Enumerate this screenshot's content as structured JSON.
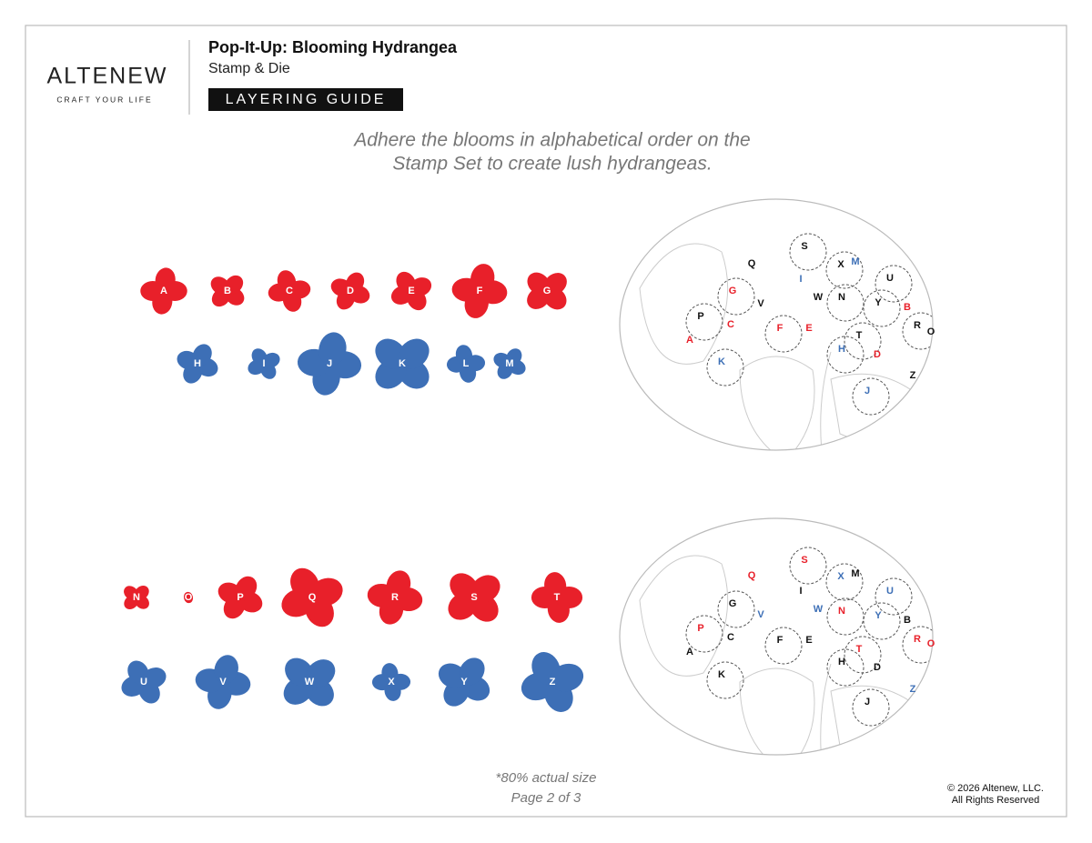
{
  "header": {
    "brand": "ALTENEW",
    "tagline": "CRAFT YOUR LIFE",
    "title": "Pop-It-Up: Blooming Hydrangea",
    "subtitle": "Stamp & Die",
    "badge": "LAYERING GUIDE"
  },
  "instructions": [
    "Adhere the blooms in alphabetical order on the",
    "Stamp Set to create lush hydrangeas."
  ],
  "bloom_rows": [
    {
      "color": "#e8202a",
      "letters": [
        "A",
        "B",
        "C",
        "D",
        "E",
        "F",
        "G"
      ]
    },
    {
      "color": "#3d6fb6",
      "letters": [
        "H",
        "I",
        "J",
        "K",
        "L",
        "M"
      ]
    },
    {
      "color": "#e8202a",
      "letters": [
        "N",
        "O",
        "P",
        "Q",
        "R",
        "S",
        "T"
      ]
    },
    {
      "color": "#3d6fb6",
      "letters": [
        "U",
        "V",
        "W",
        "X",
        "Y",
        "Z"
      ]
    }
  ],
  "diagrams": [
    {
      "labels": [
        {
          "letter": "S",
          "color": "#111111"
        },
        {
          "letter": "Q",
          "color": "#111111"
        },
        {
          "letter": "X",
          "color": "#111111"
        },
        {
          "letter": "M",
          "color": "#3d6fb6"
        },
        {
          "letter": "U",
          "color": "#111111"
        },
        {
          "letter": "I",
          "color": "#3d6fb6"
        },
        {
          "letter": "G",
          "color": "#e8202a"
        },
        {
          "letter": "W",
          "color": "#111111"
        },
        {
          "letter": "N",
          "color": "#111111"
        },
        {
          "letter": "V",
          "color": "#111111"
        },
        {
          "letter": "Y",
          "color": "#111111"
        },
        {
          "letter": "B",
          "color": "#e8202a"
        },
        {
          "letter": "P",
          "color": "#111111"
        },
        {
          "letter": "C",
          "color": "#e8202a"
        },
        {
          "letter": "F",
          "color": "#e8202a"
        },
        {
          "letter": "E",
          "color": "#e8202a"
        },
        {
          "letter": "R",
          "color": "#111111"
        },
        {
          "letter": "O",
          "color": "#111111"
        },
        {
          "letter": "T",
          "color": "#111111"
        },
        {
          "letter": "A",
          "color": "#e8202a"
        },
        {
          "letter": "H",
          "color": "#3d6fb6"
        },
        {
          "letter": "D",
          "color": "#e8202a"
        },
        {
          "letter": "K",
          "color": "#3d6fb6"
        },
        {
          "letter": "Z",
          "color": "#111111"
        },
        {
          "letter": "J",
          "color": "#3d6fb6"
        }
      ]
    },
    {
      "labels": [
        {
          "letter": "S",
          "color": "#e8202a"
        },
        {
          "letter": "Q",
          "color": "#e8202a"
        },
        {
          "letter": "X",
          "color": "#3d6fb6"
        },
        {
          "letter": "M",
          "color": "#111111"
        },
        {
          "letter": "U",
          "color": "#3d6fb6"
        },
        {
          "letter": "I",
          "color": "#111111"
        },
        {
          "letter": "G",
          "color": "#111111"
        },
        {
          "letter": "W",
          "color": "#3d6fb6"
        },
        {
          "letter": "N",
          "color": "#e8202a"
        },
        {
          "letter": "V",
          "color": "#3d6fb6"
        },
        {
          "letter": "Y",
          "color": "#3d6fb6"
        },
        {
          "letter": "B",
          "color": "#111111"
        },
        {
          "letter": "P",
          "color": "#e8202a"
        },
        {
          "letter": "C",
          "color": "#111111"
        },
        {
          "letter": "F",
          "color": "#111111"
        },
        {
          "letter": "E",
          "color": "#111111"
        },
        {
          "letter": "R",
          "color": "#e8202a"
        },
        {
          "letter": "O",
          "color": "#e8202a"
        },
        {
          "letter": "T",
          "color": "#e8202a"
        },
        {
          "letter": "A",
          "color": "#111111"
        },
        {
          "letter": "H",
          "color": "#111111"
        },
        {
          "letter": "D",
          "color": "#111111"
        },
        {
          "letter": "K",
          "color": "#111111"
        },
        {
          "letter": "Z",
          "color": "#3d6fb6"
        },
        {
          "letter": "J",
          "color": "#111111"
        }
      ]
    }
  ],
  "footer": {
    "note": "*80% actual size",
    "page": "Page 2 of 3",
    "copyright": "© 2026 Altenew, LLC.",
    "rights": "All Rights Reserved"
  }
}
